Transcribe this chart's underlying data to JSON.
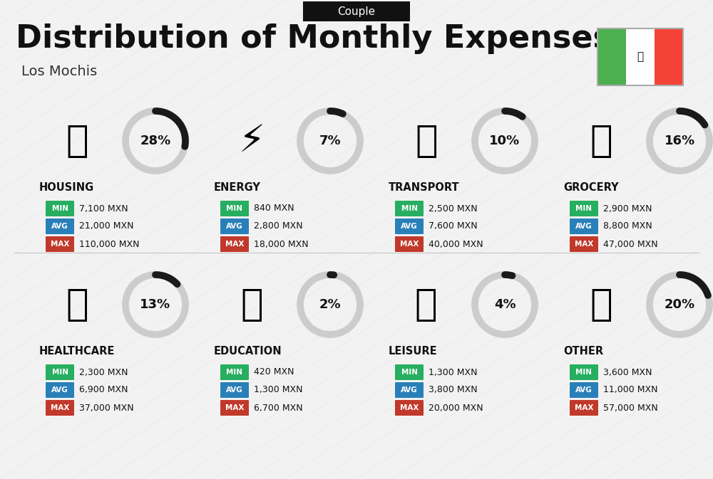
{
  "title": "Distribution of Monthly Expenses",
  "subtitle": "Couple",
  "location": "Los Mochis",
  "background_color": "#f2f2f2",
  "title_color": "#111111",
  "categories": [
    {
      "name": "HOUSING",
      "percent": 28,
      "min_val": "7,100 MXN",
      "avg_val": "21,000 MXN",
      "max_val": "110,000 MXN",
      "row": 0,
      "col": 0
    },
    {
      "name": "ENERGY",
      "percent": 7,
      "min_val": "840 MXN",
      "avg_val": "2,800 MXN",
      "max_val": "18,000 MXN",
      "row": 0,
      "col": 1
    },
    {
      "name": "TRANSPORT",
      "percent": 10,
      "min_val": "2,500 MXN",
      "avg_val": "7,600 MXN",
      "max_val": "40,000 MXN",
      "row": 0,
      "col": 2
    },
    {
      "name": "GROCERY",
      "percent": 16,
      "min_val": "2,900 MXN",
      "avg_val": "8,800 MXN",
      "max_val": "47,000 MXN",
      "row": 0,
      "col": 3
    },
    {
      "name": "HEALTHCARE",
      "percent": 13,
      "min_val": "2,300 MXN",
      "avg_val": "6,900 MXN",
      "max_val": "37,000 MXN",
      "row": 1,
      "col": 0
    },
    {
      "name": "EDUCATION",
      "percent": 2,
      "min_val": "420 MXN",
      "avg_val": "1,300 MXN",
      "max_val": "6,700 MXN",
      "row": 1,
      "col": 1
    },
    {
      "name": "LEISURE",
      "percent": 4,
      "min_val": "1,300 MXN",
      "avg_val": "3,800 MXN",
      "max_val": "20,000 MXN",
      "row": 1,
      "col": 2
    },
    {
      "name": "OTHER",
      "percent": 20,
      "min_val": "3,600 MXN",
      "avg_val": "11,000 MXN",
      "max_val": "57,000 MXN",
      "row": 1,
      "col": 3
    }
  ],
  "min_color": "#27ae60",
  "avg_color": "#2980b9",
  "max_color": "#c0392b",
  "donut_bg": "#cccccc",
  "donut_fill": "#1a1a1a",
  "mexico_green": "#4caf50",
  "mexico_white": "#ffffff",
  "mexico_red": "#f44336",
  "icon_map": {
    "HOUSING": "🏙",
    "ENERGY": "⚡",
    "TRANSPORT": "🚌",
    "GROCERY": "🛒",
    "HEALTHCARE": "💗",
    "EDUCATION": "🎓",
    "LEISURE": "🛍",
    "OTHER": "👜"
  }
}
